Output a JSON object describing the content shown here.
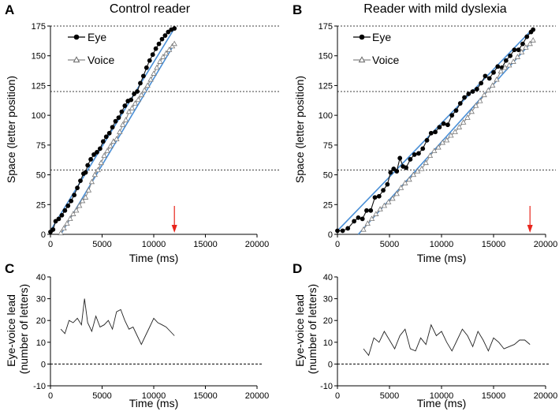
{
  "chart_data": [
    {
      "panel": "A",
      "title": "Control reader",
      "type": "line",
      "xlabel": "Time (ms)",
      "ylabel": "Space (letter position)",
      "xlim": [
        0,
        20000
      ],
      "ylim": [
        0,
        175
      ],
      "xticks": [
        "0",
        "5000",
        "10000",
        "15000",
        "20000"
      ],
      "yticks": [
        "0",
        "25",
        "50",
        "75",
        "100",
        "125",
        "150",
        "175"
      ],
      "line_breaks": [
        54,
        120,
        175
      ],
      "arrow_x": 12000,
      "legend": [
        "Eye",
        "Voice"
      ],
      "series": [
        {
          "name": "Eye",
          "marker": "circle",
          "fit": [
            [
              0,
              3
            ],
            [
              12000,
              173
            ]
          ],
          "points": [
            [
              0,
              2
            ],
            [
              250,
              4
            ],
            [
              500,
              11
            ],
            [
              800,
              13
            ],
            [
              1100,
              16
            ],
            [
              1400,
              20
            ],
            [
              1700,
              24
            ],
            [
              2000,
              28
            ],
            [
              2300,
              33
            ],
            [
              2600,
              39
            ],
            [
              2900,
              45
            ],
            [
              3200,
              51
            ],
            [
              3400,
              52
            ],
            [
              3600,
              58
            ],
            [
              3900,
              63
            ],
            [
              4200,
              67
            ],
            [
              4500,
              69
            ],
            [
              4800,
              72
            ],
            [
              5100,
              78
            ],
            [
              5400,
              82
            ],
            [
              5700,
              85
            ],
            [
              6000,
              90
            ],
            [
              6300,
              95
            ],
            [
              6600,
              98
            ],
            [
              6900,
              103
            ],
            [
              7200,
              108
            ],
            [
              7500,
              112
            ],
            [
              7800,
              113
            ],
            [
              8100,
              118
            ],
            [
              8400,
              120
            ],
            [
              8700,
              127
            ],
            [
              9000,
              133
            ],
            [
              9300,
              140
            ],
            [
              9600,
              146
            ],
            [
              9900,
              151
            ],
            [
              10200,
              156
            ],
            [
              10500,
              160
            ],
            [
              10800,
              164
            ],
            [
              11100,
              167
            ],
            [
              11400,
              170
            ],
            [
              11700,
              172
            ],
            [
              12000,
              173
            ]
          ]
        },
        {
          "name": "Voice",
          "marker": "triangle",
          "fit": [
            [
              1000,
              0
            ],
            [
              12000,
              160
            ]
          ],
          "points": [
            [
              1000,
              1
            ],
            [
              1300,
              5
            ],
            [
              1600,
              9
            ],
            [
              1900,
              13
            ],
            [
              2200,
              17
            ],
            [
              2500,
              20
            ],
            [
              2800,
              24
            ],
            [
              3100,
              28
            ],
            [
              3400,
              31
            ],
            [
              3700,
              37
            ],
            [
              4000,
              44
            ],
            [
              4300,
              50
            ],
            [
              4600,
              54
            ],
            [
              4900,
              60
            ],
            [
              5200,
              66
            ],
            [
              5500,
              70
            ],
            [
              5800,
              74
            ],
            [
              6100,
              78
            ],
            [
              6400,
              80
            ],
            [
              6700,
              86
            ],
            [
              7000,
              92
            ],
            [
              7300,
              96
            ],
            [
              7600,
              103
            ],
            [
              7900,
              106
            ],
            [
              8200,
              110
            ],
            [
              8500,
              113
            ],
            [
              8800,
              117
            ],
            [
              9100,
              121
            ],
            [
              9400,
              125
            ],
            [
              9700,
              130
            ],
            [
              10000,
              135
            ],
            [
              10300,
              140
            ],
            [
              10600,
              145
            ],
            [
              10900,
              149
            ],
            [
              11200,
              152
            ],
            [
              11500,
              155
            ],
            [
              11800,
              158
            ],
            [
              12000,
              160
            ]
          ]
        }
      ]
    },
    {
      "panel": "B",
      "title": "Reader with mild dyslexia",
      "type": "line",
      "xlabel": "Time (ms)",
      "ylabel": "Space (letter position)",
      "xlim": [
        0,
        20000
      ],
      "ylim": [
        0,
        175
      ],
      "xticks": [
        "0",
        "5000",
        "10000",
        "15000",
        "20000"
      ],
      "yticks": [
        "0",
        "25",
        "50",
        "75",
        "100",
        "125",
        "150",
        "175"
      ],
      "line_breaks": [
        54,
        120,
        175
      ],
      "arrow_x": 18500,
      "legend": [
        "Eye",
        "Voice"
      ],
      "series": [
        {
          "name": "Eye",
          "marker": "circle",
          "fit": [
            [
              0,
              3
            ],
            [
              18800,
              173
            ]
          ],
          "points": [
            [
              0,
              3
            ],
            [
              500,
              3
            ],
            [
              1000,
              5
            ],
            [
              1600,
              11
            ],
            [
              2000,
              14
            ],
            [
              2400,
              13
            ],
            [
              2800,
              20
            ],
            [
              3200,
              20
            ],
            [
              3600,
              31
            ],
            [
              4000,
              32
            ],
            [
              4400,
              37
            ],
            [
              4800,
              42
            ],
            [
              5100,
              52
            ],
            [
              5400,
              55
            ],
            [
              5700,
              53
            ],
            [
              6000,
              64
            ],
            [
              6300,
              57
            ],
            [
              6600,
              56
            ],
            [
              7000,
              63
            ],
            [
              7400,
              67
            ],
            [
              7800,
              68
            ],
            [
              8200,
              72
            ],
            [
              8600,
              79
            ],
            [
              9000,
              85
            ],
            [
              9400,
              86
            ],
            [
              9800,
              90
            ],
            [
              10200,
              93
            ],
            [
              10600,
              92
            ],
            [
              11000,
              100
            ],
            [
              11400,
              104
            ],
            [
              11800,
              110
            ],
            [
              12200,
              115
            ],
            [
              12600,
              118
            ],
            [
              13000,
              120
            ],
            [
              13400,
              122
            ],
            [
              13800,
              127
            ],
            [
              14200,
              133
            ],
            [
              14600,
              131
            ],
            [
              15000,
              136
            ],
            [
              15400,
              141
            ],
            [
              15800,
              140
            ],
            [
              16200,
              146
            ],
            [
              16600,
              150
            ],
            [
              17000,
              155
            ],
            [
              17400,
              155
            ],
            [
              17800,
              160
            ],
            [
              18200,
              166
            ],
            [
              18600,
              170
            ],
            [
              18800,
              172
            ]
          ]
        },
        {
          "name": "Voice",
          "marker": "triangle",
          "fit": [
            [
              2000,
              0
            ],
            [
              18800,
              163
            ]
          ],
          "points": [
            [
              2500,
              4
            ],
            [
              2900,
              9
            ],
            [
              3300,
              13
            ],
            [
              3700,
              17
            ],
            [
              4100,
              21
            ],
            [
              4500,
              24
            ],
            [
              4900,
              27
            ],
            [
              5300,
              30
            ],
            [
              5700,
              34
            ],
            [
              6100,
              39
            ],
            [
              6500,
              43
            ],
            [
              6900,
              46
            ],
            [
              7300,
              50
            ],
            [
              7700,
              53
            ],
            [
              8100,
              55
            ],
            [
              8500,
              60
            ],
            [
              8900,
              66
            ],
            [
              9300,
              70
            ],
            [
              9700,
              73
            ],
            [
              10100,
              77
            ],
            [
              10500,
              79
            ],
            [
              10900,
              83
            ],
            [
              11300,
              86
            ],
            [
              11700,
              90
            ],
            [
              12100,
              94
            ],
            [
              12500,
              98
            ],
            [
              12900,
              103
            ],
            [
              13300,
              108
            ],
            [
              13700,
              112
            ],
            [
              14100,
              117
            ],
            [
              14500,
              121
            ],
            [
              14900,
              125
            ],
            [
              15300,
              130
            ],
            [
              15700,
              137
            ],
            [
              16100,
              140
            ],
            [
              16500,
              142
            ],
            [
              16900,
              145
            ],
            [
              17300,
              149
            ],
            [
              17700,
              153
            ],
            [
              18100,
              157
            ],
            [
              18500,
              160
            ],
            [
              18800,
              163
            ]
          ]
        }
      ]
    },
    {
      "panel": "C",
      "type": "line",
      "xlabel": "Time (ms)",
      "ylabel": "Eye-voice lead (number of letters)",
      "xlim": [
        0,
        20000
      ],
      "ylim": [
        -10,
        40
      ],
      "xticks": [
        "0",
        "5000",
        "10000",
        "15000",
        "20000"
      ],
      "yticks": [
        "-10",
        "0",
        "10",
        "20",
        "30",
        "40"
      ],
      "zero_line": true,
      "series": [
        {
          "name": "Eye-voice lead",
          "points": [
            [
              1000,
              16
            ],
            [
              1400,
              14
            ],
            [
              1800,
              20
            ],
            [
              2200,
              19
            ],
            [
              2600,
              21
            ],
            [
              3000,
              18
            ],
            [
              3300,
              30
            ],
            [
              3600,
              19
            ],
            [
              4000,
              15
            ],
            [
              4400,
              22
            ],
            [
              4800,
              17
            ],
            [
              5200,
              18
            ],
            [
              5600,
              20
            ],
            [
              6000,
              16
            ],
            [
              6400,
              24
            ],
            [
              6800,
              25
            ],
            [
              7200,
              20
            ],
            [
              7600,
              16
            ],
            [
              8000,
              17
            ],
            [
              8400,
              13
            ],
            [
              8800,
              9
            ],
            [
              9200,
              13
            ],
            [
              9600,
              17
            ],
            [
              10000,
              21
            ],
            [
              10400,
              19
            ],
            [
              10800,
              18
            ],
            [
              11200,
              17
            ],
            [
              11600,
              15
            ],
            [
              12000,
              13
            ]
          ]
        }
      ]
    },
    {
      "panel": "D",
      "type": "line",
      "xlabel": "Time (ms)",
      "ylabel": "Eye-voice lead (number of letters)",
      "xlim": [
        0,
        20000
      ],
      "ylim": [
        -10,
        40
      ],
      "xticks": [
        "0",
        "5000",
        "10000",
        "15000",
        "20000"
      ],
      "yticks": [
        "-10",
        "0",
        "10",
        "20",
        "30",
        "40"
      ],
      "zero_line": true,
      "series": [
        {
          "name": "Eye-voice lead",
          "points": [
            [
              2500,
              7
            ],
            [
              3000,
              4
            ],
            [
              3500,
              12
            ],
            [
              4000,
              10
            ],
            [
              4500,
              15
            ],
            [
              5000,
              11
            ],
            [
              5500,
              7
            ],
            [
              6000,
              13
            ],
            [
              6500,
              16
            ],
            [
              7000,
              7
            ],
            [
              7500,
              6
            ],
            [
              8000,
              12
            ],
            [
              8500,
              9
            ],
            [
              9000,
              18
            ],
            [
              9500,
              13
            ],
            [
              10000,
              15
            ],
            [
              10500,
              10
            ],
            [
              11000,
              6
            ],
            [
              11500,
              11
            ],
            [
              12000,
              16
            ],
            [
              12500,
              13
            ],
            [
              13000,
              8
            ],
            [
              13500,
              15
            ],
            [
              14000,
              11
            ],
            [
              14500,
              6
            ],
            [
              15000,
              12
            ],
            [
              15500,
              10
            ],
            [
              16000,
              7
            ],
            [
              16500,
              8
            ],
            [
              17000,
              9
            ],
            [
              17500,
              11
            ],
            [
              18000,
              11
            ],
            [
              18500,
              9
            ]
          ]
        }
      ]
    }
  ]
}
